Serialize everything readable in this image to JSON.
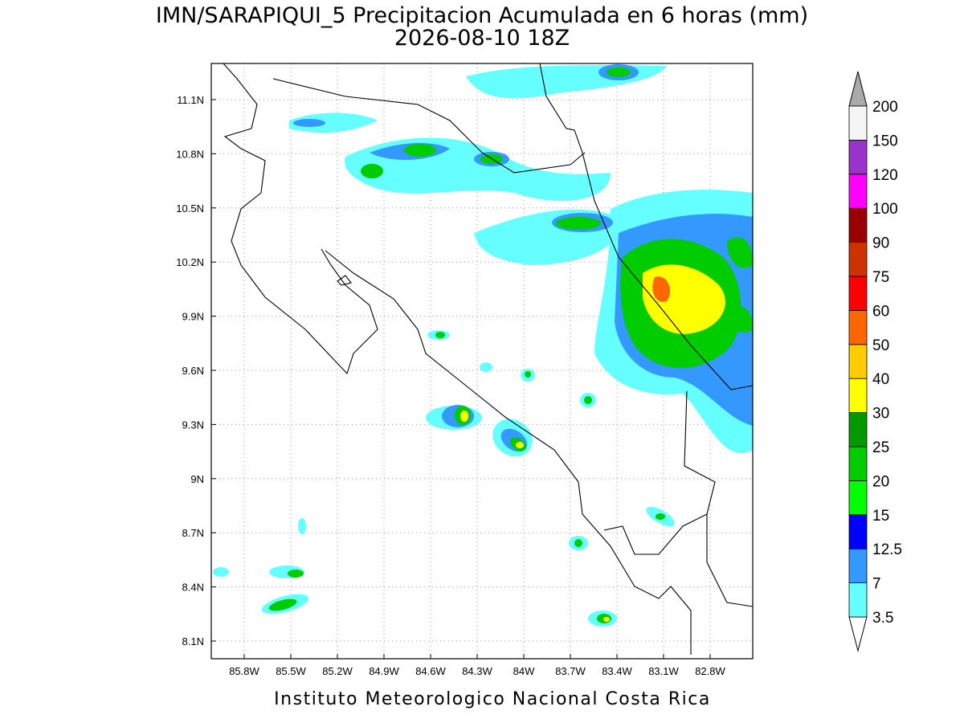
{
  "title": [
    "IMN/SARAPIQUI_5 Precipitacion Acumulada en 6 horas (mm)",
    "2026-08-10 18Z"
  ],
  "map": {
    "lat_labels": [
      "11.1N",
      "10.8N",
      "10.5N",
      "10.2N",
      "9.9N",
      "9.6N",
      "9.3N",
      "9N",
      "8.7N",
      "8.4N",
      "8.1N"
    ],
    "lon_labels": [
      "85.8W",
      "85.5W",
      "85.2W",
      "84.9W",
      "84.6W",
      "84.3W",
      "84W",
      "83.7W",
      "83.4W",
      "83.1W",
      "82.8W"
    ]
  },
  "colorbar": {
    "levels": [
      3.5,
      7,
      12.5,
      15,
      20,
      25,
      30,
      40,
      50,
      60,
      75,
      90,
      100,
      120,
      150,
      200
    ],
    "colors": [
      "#66ffff",
      "#3399ff",
      "#0000ff",
      "#00ff00",
      "#00cc00",
      "#009900",
      "#ffff00",
      "#ffcc00",
      "#ff6600",
      "#ff0000",
      "#cc3300",
      "#990000",
      "#ff00ff",
      "#9933cc",
      "#f5f5f5"
    ]
  },
  "footer": "Instituto Meteorologico Nacional Costa Rica"
}
